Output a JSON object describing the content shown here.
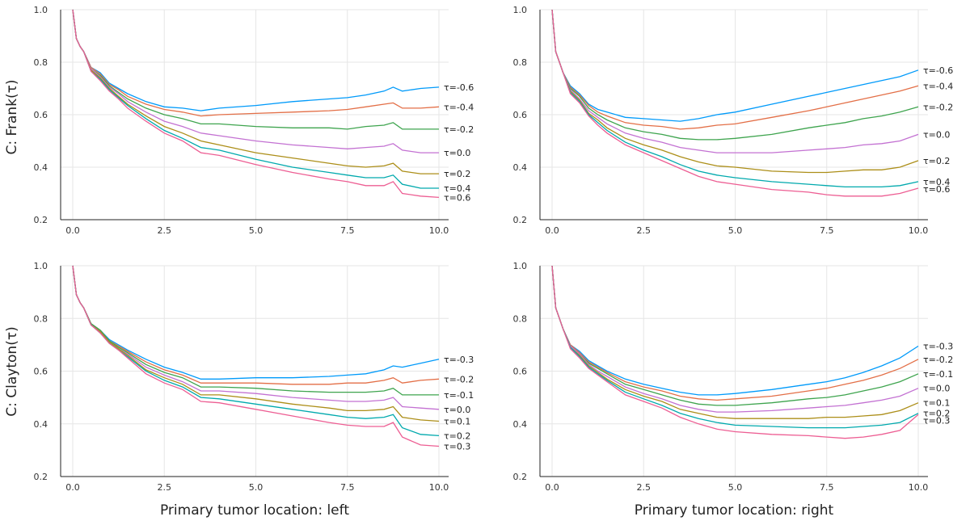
{
  "colors": [
    "#009AFA",
    "#E36F47",
    "#3EA44E",
    "#C371D2",
    "#AC8E18",
    "#00A9AD",
    "#ED5E93"
  ],
  "row_titles": [
    "C: Frank(τ)",
    "C: Clayton(τ)"
  ],
  "col_titles": [
    "Primary tumor location: left",
    "Primary tumor location: right"
  ],
  "chart_data": [
    {
      "type": "line",
      "panel": "top-left",
      "xlim": [
        0,
        10
      ],
      "ylim": [
        0.2,
        1.0
      ],
      "xticks": [
        "0.0",
        "2.5",
        "5.0",
        "7.5",
        "10.0"
      ],
      "yticks": [
        "0.2",
        "0.4",
        "0.6",
        "0.8",
        "1.0"
      ],
      "x": [
        0,
        0.1,
        0.2,
        0.3,
        0.5,
        0.75,
        1,
        1.25,
        1.5,
        2,
        2.5,
        3,
        3.5,
        4,
        5,
        6,
        7,
        7.5,
        8,
        8.5,
        8.75,
        9,
        9.5,
        10
      ],
      "series": [
        {
          "name": "τ=-0.6",
          "values": [
            1.0,
            0.89,
            0.86,
            0.84,
            0.78,
            0.76,
            0.72,
            0.7,
            0.68,
            0.65,
            0.63,
            0.625,
            0.615,
            0.625,
            0.635,
            0.65,
            0.66,
            0.665,
            0.675,
            0.69,
            0.705,
            0.69,
            0.7,
            0.705
          ]
        },
        {
          "name": "τ=-0.4",
          "values": [
            1.0,
            0.89,
            0.86,
            0.84,
            0.78,
            0.755,
            0.715,
            0.695,
            0.67,
            0.64,
            0.62,
            0.61,
            0.595,
            0.6,
            0.605,
            0.61,
            0.615,
            0.62,
            0.63,
            0.64,
            0.645,
            0.625,
            0.625,
            0.63
          ]
        },
        {
          "name": "τ=-0.2",
          "values": [
            1.0,
            0.89,
            0.86,
            0.84,
            0.775,
            0.75,
            0.71,
            0.685,
            0.66,
            0.625,
            0.6,
            0.585,
            0.565,
            0.565,
            0.555,
            0.55,
            0.55,
            0.545,
            0.555,
            0.56,
            0.57,
            0.545,
            0.545,
            0.545
          ]
        },
        {
          "name": "τ=0.0",
          "values": [
            1.0,
            0.89,
            0.86,
            0.84,
            0.775,
            0.745,
            0.705,
            0.68,
            0.65,
            0.61,
            0.575,
            0.555,
            0.53,
            0.52,
            0.5,
            0.485,
            0.475,
            0.47,
            0.475,
            0.48,
            0.49,
            0.465,
            0.455,
            0.455
          ]
        },
        {
          "name": "τ=0.2",
          "values": [
            1.0,
            0.89,
            0.86,
            0.84,
            0.77,
            0.74,
            0.7,
            0.67,
            0.64,
            0.595,
            0.555,
            0.53,
            0.5,
            0.485,
            0.455,
            0.435,
            0.415,
            0.405,
            0.4,
            0.405,
            0.415,
            0.385,
            0.375,
            0.375
          ]
        },
        {
          "name": "τ=0.4",
          "values": [
            1.0,
            0.89,
            0.86,
            0.84,
            0.765,
            0.735,
            0.695,
            0.665,
            0.635,
            0.585,
            0.54,
            0.51,
            0.475,
            0.465,
            0.43,
            0.4,
            0.38,
            0.37,
            0.36,
            0.36,
            0.37,
            0.335,
            0.32,
            0.32
          ]
        },
        {
          "name": "τ=0.6",
          "values": [
            1.0,
            0.89,
            0.86,
            0.84,
            0.765,
            0.73,
            0.69,
            0.66,
            0.625,
            0.575,
            0.53,
            0.5,
            0.455,
            0.445,
            0.41,
            0.38,
            0.355,
            0.345,
            0.33,
            0.33,
            0.345,
            0.3,
            0.29,
            0.285
          ]
        }
      ]
    },
    {
      "type": "line",
      "panel": "top-right",
      "xlim": [
        0,
        10
      ],
      "ylim": [
        0.2,
        1.0
      ],
      "xticks": [
        "0.0",
        "2.5",
        "5.0",
        "7.5",
        "10.0"
      ],
      "yticks": [
        "0.2",
        "0.4",
        "0.6",
        "0.8",
        "1.0"
      ],
      "x": [
        0,
        0.1,
        0.2,
        0.3,
        0.5,
        0.75,
        1,
        1.25,
        1.5,
        2,
        2.5,
        3,
        3.5,
        4,
        4.5,
        5,
        6,
        7,
        7.5,
        8,
        8.5,
        9,
        9.5,
        10
      ],
      "series": [
        {
          "name": "τ=-0.6",
          "values": [
            1.0,
            0.84,
            0.8,
            0.76,
            0.71,
            0.68,
            0.64,
            0.62,
            0.61,
            0.59,
            0.585,
            0.58,
            0.575,
            0.585,
            0.6,
            0.61,
            0.64,
            0.67,
            0.685,
            0.7,
            0.715,
            0.73,
            0.745,
            0.77
          ]
        },
        {
          "name": "τ=-0.4",
          "values": [
            1.0,
            0.84,
            0.8,
            0.76,
            0.705,
            0.675,
            0.635,
            0.61,
            0.595,
            0.57,
            0.56,
            0.555,
            0.545,
            0.55,
            0.56,
            0.565,
            0.59,
            0.615,
            0.63,
            0.645,
            0.66,
            0.675,
            0.69,
            0.71
          ]
        },
        {
          "name": "τ=-0.2",
          "values": [
            1.0,
            0.84,
            0.8,
            0.76,
            0.7,
            0.67,
            0.625,
            0.6,
            0.58,
            0.55,
            0.535,
            0.525,
            0.51,
            0.505,
            0.505,
            0.51,
            0.525,
            0.55,
            0.56,
            0.57,
            0.585,
            0.595,
            0.61,
            0.63
          ]
        },
        {
          "name": "τ=0.0",
          "values": [
            1.0,
            0.84,
            0.8,
            0.76,
            0.695,
            0.66,
            0.615,
            0.59,
            0.565,
            0.53,
            0.51,
            0.495,
            0.475,
            0.465,
            0.455,
            0.455,
            0.455,
            0.465,
            0.47,
            0.475,
            0.485,
            0.49,
            0.5,
            0.525
          ]
        },
        {
          "name": "τ=0.2",
          "values": [
            1.0,
            0.84,
            0.8,
            0.76,
            0.69,
            0.655,
            0.605,
            0.58,
            0.55,
            0.51,
            0.485,
            0.465,
            0.44,
            0.42,
            0.405,
            0.4,
            0.385,
            0.38,
            0.38,
            0.385,
            0.39,
            0.39,
            0.4,
            0.425
          ]
        },
        {
          "name": "τ=0.4",
          "values": [
            1.0,
            0.84,
            0.8,
            0.76,
            0.685,
            0.65,
            0.6,
            0.57,
            0.54,
            0.495,
            0.465,
            0.44,
            0.41,
            0.385,
            0.37,
            0.36,
            0.345,
            0.335,
            0.33,
            0.325,
            0.325,
            0.325,
            0.33,
            0.345
          ]
        },
        {
          "name": "τ=0.6",
          "values": [
            1.0,
            0.84,
            0.8,
            0.76,
            0.68,
            0.645,
            0.595,
            0.56,
            0.53,
            0.485,
            0.455,
            0.425,
            0.395,
            0.365,
            0.345,
            0.335,
            0.315,
            0.305,
            0.295,
            0.29,
            0.29,
            0.29,
            0.3,
            0.32
          ]
        }
      ]
    },
    {
      "type": "line",
      "panel": "bottom-left",
      "xlim": [
        0,
        10
      ],
      "ylim": [
        0.2,
        1.0
      ],
      "xticks": [
        "0.0",
        "2.5",
        "5.0",
        "7.5",
        "10.0"
      ],
      "yticks": [
        "0.2",
        "0.4",
        "0.6",
        "0.8",
        "1.0"
      ],
      "x": [
        0,
        0.1,
        0.2,
        0.3,
        0.5,
        0.75,
        1,
        1.25,
        1.5,
        2,
        2.5,
        3,
        3.5,
        4,
        5,
        6,
        7,
        7.5,
        8,
        8.5,
        8.75,
        9,
        9.5,
        10
      ],
      "series": [
        {
          "name": "τ=-0.3",
          "values": [
            1.0,
            0.89,
            0.86,
            0.84,
            0.78,
            0.755,
            0.72,
            0.7,
            0.68,
            0.645,
            0.615,
            0.595,
            0.57,
            0.57,
            0.575,
            0.575,
            0.58,
            0.585,
            0.59,
            0.605,
            0.62,
            0.615,
            0.63,
            0.645
          ]
        },
        {
          "name": "τ=-0.2",
          "values": [
            1.0,
            0.89,
            0.86,
            0.84,
            0.78,
            0.755,
            0.715,
            0.695,
            0.675,
            0.635,
            0.605,
            0.585,
            0.555,
            0.555,
            0.555,
            0.55,
            0.55,
            0.555,
            0.555,
            0.565,
            0.575,
            0.555,
            0.565,
            0.57
          ]
        },
        {
          "name": "τ=-0.1",
          "values": [
            1.0,
            0.89,
            0.86,
            0.84,
            0.78,
            0.755,
            0.715,
            0.69,
            0.67,
            0.625,
            0.595,
            0.575,
            0.54,
            0.54,
            0.535,
            0.525,
            0.52,
            0.52,
            0.52,
            0.525,
            0.535,
            0.51,
            0.51,
            0.51
          ]
        },
        {
          "name": "τ=0.0",
          "values": [
            1.0,
            0.89,
            0.86,
            0.84,
            0.775,
            0.75,
            0.71,
            0.685,
            0.665,
            0.615,
            0.585,
            0.56,
            0.525,
            0.525,
            0.515,
            0.5,
            0.49,
            0.485,
            0.485,
            0.49,
            0.5,
            0.465,
            0.46,
            0.455
          ]
        },
        {
          "name": "τ=0.1",
          "values": [
            1.0,
            0.89,
            0.86,
            0.84,
            0.775,
            0.75,
            0.71,
            0.685,
            0.66,
            0.605,
            0.575,
            0.55,
            0.51,
            0.51,
            0.495,
            0.475,
            0.46,
            0.45,
            0.45,
            0.455,
            0.465,
            0.425,
            0.415,
            0.41
          ]
        },
        {
          "name": "τ=0.2",
          "values": [
            1.0,
            0.89,
            0.86,
            0.84,
            0.775,
            0.745,
            0.705,
            0.68,
            0.655,
            0.6,
            0.565,
            0.54,
            0.5,
            0.495,
            0.475,
            0.455,
            0.435,
            0.425,
            0.42,
            0.425,
            0.435,
            0.385,
            0.36,
            0.355
          ]
        },
        {
          "name": "τ=0.3",
          "values": [
            1.0,
            0.89,
            0.86,
            0.84,
            0.775,
            0.745,
            0.705,
            0.68,
            0.65,
            0.59,
            0.555,
            0.53,
            0.485,
            0.48,
            0.455,
            0.43,
            0.405,
            0.395,
            0.39,
            0.39,
            0.405,
            0.35,
            0.32,
            0.315
          ]
        }
      ]
    },
    {
      "type": "line",
      "panel": "bottom-right",
      "xlim": [
        0,
        10
      ],
      "ylim": [
        0.2,
        1.0
      ],
      "xticks": [
        "0.0",
        "2.5",
        "5.0",
        "7.5",
        "10.0"
      ],
      "yticks": [
        "0.2",
        "0.4",
        "0.6",
        "0.8",
        "1.0"
      ],
      "x": [
        0,
        0.1,
        0.2,
        0.3,
        0.5,
        0.75,
        1,
        1.25,
        1.5,
        2,
        2.5,
        3,
        3.5,
        4,
        4.5,
        5,
        6,
        7,
        7.5,
        8,
        8.5,
        9,
        9.5,
        10
      ],
      "series": [
        {
          "name": "τ=-0.3",
          "values": [
            1.0,
            0.84,
            0.8,
            0.76,
            0.7,
            0.675,
            0.64,
            0.62,
            0.6,
            0.57,
            0.55,
            0.535,
            0.52,
            0.51,
            0.51,
            0.515,
            0.53,
            0.55,
            0.56,
            0.575,
            0.595,
            0.62,
            0.65,
            0.695
          ]
        },
        {
          "name": "τ=-0.2",
          "values": [
            1.0,
            0.84,
            0.8,
            0.76,
            0.7,
            0.67,
            0.635,
            0.615,
            0.595,
            0.56,
            0.54,
            0.525,
            0.505,
            0.495,
            0.49,
            0.495,
            0.505,
            0.525,
            0.535,
            0.55,
            0.565,
            0.585,
            0.61,
            0.645
          ]
        },
        {
          "name": "τ=-0.1",
          "values": [
            1.0,
            0.84,
            0.8,
            0.76,
            0.695,
            0.665,
            0.63,
            0.61,
            0.59,
            0.55,
            0.53,
            0.51,
            0.49,
            0.475,
            0.47,
            0.47,
            0.48,
            0.495,
            0.5,
            0.51,
            0.525,
            0.54,
            0.56,
            0.59
          ]
        },
        {
          "name": "τ=0.0",
          "values": [
            1.0,
            0.84,
            0.8,
            0.76,
            0.695,
            0.665,
            0.625,
            0.6,
            0.58,
            0.54,
            0.515,
            0.495,
            0.47,
            0.455,
            0.445,
            0.445,
            0.45,
            0.46,
            0.465,
            0.47,
            0.48,
            0.49,
            0.505,
            0.535
          ]
        },
        {
          "name": "τ=0.1",
          "values": [
            1.0,
            0.84,
            0.8,
            0.76,
            0.69,
            0.66,
            0.62,
            0.595,
            0.57,
            0.53,
            0.505,
            0.485,
            0.455,
            0.44,
            0.425,
            0.42,
            0.42,
            0.42,
            0.425,
            0.425,
            0.43,
            0.435,
            0.45,
            0.48
          ]
        },
        {
          "name": "τ=0.2",
          "values": [
            1.0,
            0.84,
            0.8,
            0.76,
            0.69,
            0.655,
            0.615,
            0.59,
            0.565,
            0.52,
            0.495,
            0.47,
            0.44,
            0.42,
            0.405,
            0.395,
            0.39,
            0.385,
            0.385,
            0.385,
            0.39,
            0.395,
            0.405,
            0.44
          ]
        },
        {
          "name": "τ=0.3",
          "values": [
            1.0,
            0.84,
            0.8,
            0.76,
            0.685,
            0.65,
            0.61,
            0.585,
            0.56,
            0.51,
            0.485,
            0.46,
            0.425,
            0.4,
            0.38,
            0.37,
            0.36,
            0.355,
            0.35,
            0.345,
            0.35,
            0.36,
            0.375,
            0.435
          ]
        }
      ]
    }
  ]
}
